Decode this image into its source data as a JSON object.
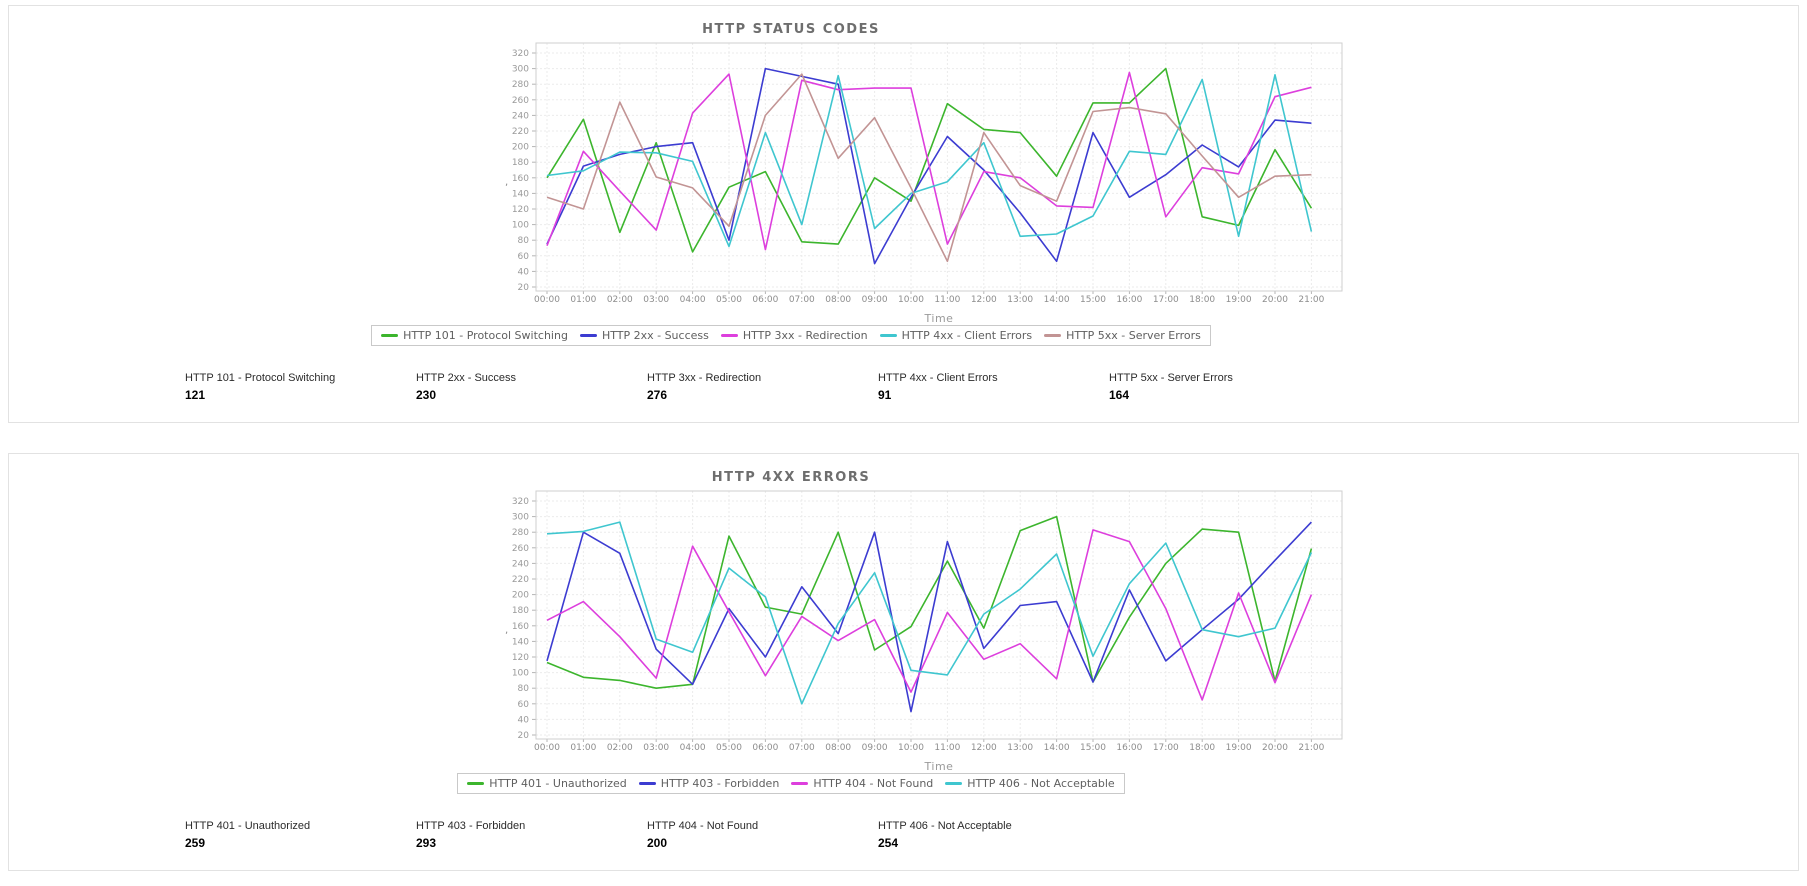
{
  "chart_data": [
    {
      "type": "line",
      "title": "HTTP STATUS CODES",
      "xlabel": "Time",
      "ylabel": ",",
      "ylim": [
        20,
        335
      ],
      "y_ticks": {
        "min": 20,
        "max": 320,
        "step": 20
      },
      "grid": "dashed",
      "legend_position": "bottom",
      "x": [
        "00:00",
        "01:00",
        "02:00",
        "03:00",
        "04:00",
        "05:00",
        "06:00",
        "07:00",
        "08:00",
        "09:00",
        "10:00",
        "11:00",
        "12:00",
        "13:00",
        "14:00",
        "15:00",
        "16:00",
        "17:00",
        "18:00",
        "19:00",
        "20:00",
        "21:00"
      ],
      "series": [
        {
          "name": "HTTP 101 - Protocol Switching",
          "color": "#3cb52d",
          "values": [
            160,
            235,
            90,
            205,
            65,
            148,
            168,
            78,
            75,
            160,
            130,
            255,
            222,
            218,
            162,
            256,
            256,
            300,
            110,
            99,
            196,
            121
          ]
        },
        {
          "name": "HTTP 2xx - Success",
          "color": "#3c3cd1",
          "values": [
            75,
            175,
            190,
            200,
            205,
            80,
            300,
            290,
            280,
            50,
            135,
            213,
            170,
            115,
            53,
            218,
            135,
            164,
            202,
            174,
            234,
            230
          ]
        },
        {
          "name": "HTTP 3xx - Redirection",
          "color": "#dd3fdd",
          "values": [
            73,
            194,
            143,
            93,
            243,
            293,
            68,
            285,
            273,
            275,
            275,
            75,
            168,
            160,
            124,
            122,
            295,
            110,
            173,
            165,
            264,
            276
          ]
        },
        {
          "name": "HTTP 4xx - Client Errors",
          "color": "#3fc6cf",
          "values": [
            163,
            169,
            193,
            192,
            181,
            72,
            218,
            100,
            291,
            95,
            140,
            155,
            205,
            85,
            88,
            111,
            194,
            190,
            286,
            85,
            292,
            91
          ]
        },
        {
          "name": "HTTP 5xx - Server Errors",
          "color": "#c29494",
          "values": [
            135,
            120,
            257,
            161,
            147,
            98,
            240,
            293,
            185,
            237,
            147,
            53,
            218,
            150,
            130,
            245,
            250,
            242,
            188,
            135,
            162,
            164
          ]
        }
      ],
      "stats": [
        {
          "label": "HTTP 101 - Protocol Switching",
          "value": "121"
        },
        {
          "label": "HTTP 2xx - Success",
          "value": "230"
        },
        {
          "label": "HTTP 3xx - Redirection",
          "value": "276"
        },
        {
          "label": "HTTP 4xx - Client Errors",
          "value": "91"
        },
        {
          "label": "HTTP 5xx - Server Errors",
          "value": "164"
        }
      ]
    },
    {
      "type": "line",
      "title": "HTTP 4XX ERRORS",
      "xlabel": "Time",
      "ylabel": ",",
      "ylim": [
        20,
        335
      ],
      "y_ticks": {
        "min": 20,
        "max": 320,
        "step": 20
      },
      "grid": "dashed",
      "legend_position": "bottom",
      "x": [
        "00:00",
        "01:00",
        "02:00",
        "03:00",
        "04:00",
        "05:00",
        "06:00",
        "07:00",
        "08:00",
        "09:00",
        "10:00",
        "11:00",
        "12:00",
        "13:00",
        "14:00",
        "15:00",
        "16:00",
        "17:00",
        "18:00",
        "19:00",
        "20:00",
        "21:00"
      ],
      "series": [
        {
          "name": "HTTP 401 - Unauthorized",
          "color": "#3cb52d",
          "values": [
            113,
            94,
            90,
            80,
            85,
            275,
            184,
            175,
            280,
            129,
            159,
            243,
            157,
            282,
            300,
            88,
            171,
            240,
            284,
            280,
            89,
            259
          ]
        },
        {
          "name": "HTTP 403 - Forbidden",
          "color": "#3c3cd1",
          "values": [
            115,
            280,
            253,
            130,
            85,
            182,
            120,
            210,
            150,
            280,
            50,
            268,
            131,
            186,
            191,
            88,
            206,
            115,
            155,
            194,
            244,
            293
          ]
        },
        {
          "name": "HTTP 404 - Not Found",
          "color": "#dd3fdd",
          "values": [
            167,
            191,
            146,
            93,
            262,
            178,
            96,
            172,
            141,
            168,
            75,
            177,
            117,
            137,
            92,
            283,
            268,
            182,
            65,
            202,
            87,
            200
          ]
        },
        {
          "name": "HTTP 406 - Not Acceptable",
          "color": "#3fc6cf",
          "values": [
            278,
            281,
            293,
            143,
            126,
            234,
            197,
            60,
            163,
            228,
            103,
            97,
            175,
            207,
            252,
            121,
            214,
            266,
            155,
            146,
            157,
            254
          ]
        }
      ],
      "stats": [
        {
          "label": "HTTP 401 - Unauthorized",
          "value": "259"
        },
        {
          "label": "HTTP 403 - Forbidden",
          "value": "293"
        },
        {
          "label": "HTTP 404 - Not Found",
          "value": "200"
        },
        {
          "label": "HTTP 406 - Not Acceptable",
          "value": "254"
        }
      ]
    }
  ],
  "style": {
    "accent_colors": [
      "#3cb52d",
      "#3c3cd1",
      "#dd3fdd",
      "#3fc6cf",
      "#c29494"
    ],
    "panel_border": "#e2e2e2",
    "grid_color": "#ebebeb",
    "axis_border": "#cfcfcf",
    "tick_text": "#9a9a9a",
    "title_text": "#6e6e6e"
  }
}
